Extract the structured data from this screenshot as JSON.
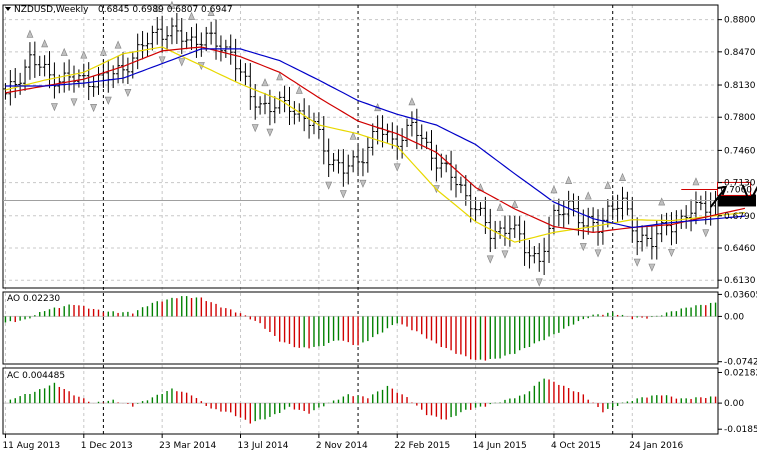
{
  "chart_data": [
    {
      "panel": "price",
      "type": "candlestick",
      "title": "NZDUSD,Weekly",
      "ohlc_header": "0.6845 0.6989 0.6807 0.6947",
      "last_price": "0.6947",
      "target_label": "0.7060",
      "ylim": [
        0.605,
        0.895
      ],
      "y_ticks": [
        "0.8800",
        "0.8470",
        "0.8130",
        "0.7800",
        "0.7460",
        "0.7130",
        "0.6790",
        "0.6460",
        "0.6130"
      ],
      "y_tick_values": [
        0.88,
        0.847,
        0.813,
        0.78,
        0.746,
        0.713,
        0.679,
        0.646,
        0.613
      ],
      "x_labels": [
        "11 Aug 2013",
        "1 Dec 2013",
        "23 Mar 2014",
        "13 Jul 2014",
        "2 Nov 2014",
        "22 Feb 2015",
        "14 Jun 2015",
        "4 Oct 2015",
        "24 Jan 2016"
      ],
      "series_ma": [
        {
          "color": "#e8d800",
          "anchors": [
            [
              0,
              0.808
            ],
            [
              8,
              0.818
            ],
            [
              16,
              0.826
            ],
            [
              24,
              0.845
            ],
            [
              32,
              0.852
            ],
            [
              40,
              0.833
            ],
            [
              48,
              0.814
            ],
            [
              56,
              0.798
            ],
            [
              64,
              0.772
            ],
            [
              72,
              0.763
            ],
            [
              80,
              0.75
            ],
            [
              88,
              0.706
            ],
            [
              96,
              0.673
            ],
            [
              104,
              0.652
            ],
            [
              112,
              0.662
            ],
            [
              120,
              0.668
            ],
            [
              128,
              0.675
            ],
            [
              136,
              0.674
            ],
            [
              145,
              0.679
            ]
          ]
        },
        {
          "color": "#d00000",
          "anchors": [
            [
              0,
              0.805
            ],
            [
              8,
              0.812
            ],
            [
              16,
              0.819
            ],
            [
              24,
              0.832
            ],
            [
              32,
              0.848
            ],
            [
              40,
              0.852
            ],
            [
              48,
              0.842
            ],
            [
              56,
              0.826
            ],
            [
              64,
              0.8
            ],
            [
              72,
              0.776
            ],
            [
              80,
              0.763
            ],
            [
              88,
              0.744
            ],
            [
              96,
              0.708
            ],
            [
              104,
              0.686
            ],
            [
              112,
              0.668
            ],
            [
              120,
              0.662
            ],
            [
              128,
              0.667
            ],
            [
              136,
              0.67
            ],
            [
              145,
              0.68
            ]
          ]
        },
        {
          "color": "#0000c8",
          "anchors": [
            [
              0,
              0.812
            ],
            [
              8,
              0.812
            ],
            [
              16,
              0.815
            ],
            [
              24,
              0.82
            ],
            [
              32,
              0.835
            ],
            [
              40,
              0.85
            ],
            [
              48,
              0.85
            ],
            [
              56,
              0.838
            ],
            [
              64,
              0.818
            ],
            [
              72,
              0.797
            ],
            [
              80,
              0.783
            ],
            [
              88,
              0.772
            ],
            [
              96,
              0.752
            ],
            [
              104,
              0.722
            ],
            [
              112,
              0.693
            ],
            [
              120,
              0.676
            ],
            [
              128,
              0.667
            ],
            [
              136,
              0.672
            ],
            [
              145,
              0.676
            ]
          ]
        }
      ],
      "closes_anchors": [
        [
          0,
          0.8
        ],
        [
          5,
          0.84
        ],
        [
          9,
          0.822
        ],
        [
          15,
          0.818
        ],
        [
          21,
          0.82
        ],
        [
          26,
          0.84
        ],
        [
          31,
          0.87
        ],
        [
          37,
          0.86
        ],
        [
          41,
          0.86
        ],
        [
          46,
          0.848
        ],
        [
          50,
          0.8
        ],
        [
          54,
          0.79
        ],
        [
          58,
          0.793
        ],
        [
          63,
          0.77
        ],
        [
          66,
          0.74
        ],
        [
          69,
          0.725
        ],
        [
          72,
          0.735
        ],
        [
          76,
          0.768
        ],
        [
          79,
          0.755
        ],
        [
          83,
          0.77
        ],
        [
          86,
          0.75
        ],
        [
          89,
          0.73
        ],
        [
          92,
          0.713
        ],
        [
          95,
          0.695
        ],
        [
          99,
          0.66
        ],
        [
          103,
          0.67
        ],
        [
          106,
          0.645
        ],
        [
          109,
          0.635
        ],
        [
          112,
          0.675
        ],
        [
          115,
          0.694
        ],
        [
          118,
          0.668
        ],
        [
          121,
          0.67
        ],
        [
          123,
          0.686
        ],
        [
          126,
          0.69
        ],
        [
          129,
          0.66
        ],
        [
          132,
          0.65
        ],
        [
          135,
          0.672
        ],
        [
          138,
          0.673
        ],
        [
          142,
          0.691
        ],
        [
          145,
          0.6947
        ]
      ],
      "annotations": [
        "up-arrow",
        "zigzag-projection-arrow"
      ]
    },
    {
      "panel": "oscillator",
      "type": "histogram",
      "title": "AO 0.02230",
      "ylim": [
        -0.078,
        0.04
      ],
      "y_ticks": [
        "0.03605",
        "0.00",
        "-0.07424"
      ],
      "y_tick_values": [
        0.03605,
        0.0,
        -0.07424
      ],
      "anchors": [
        [
          0,
          -0.01
        ],
        [
          4,
          -0.006
        ],
        [
          8,
          0.01
        ],
        [
          14,
          0.02
        ],
        [
          20,
          0.008
        ],
        [
          26,
          0.006
        ],
        [
          30,
          0.022
        ],
        [
          36,
          0.033
        ],
        [
          40,
          0.03
        ],
        [
          44,
          0.016
        ],
        [
          48,
          0.005
        ],
        [
          52,
          -0.012
        ],
        [
          56,
          -0.04
        ],
        [
          60,
          -0.052
        ],
        [
          64,
          -0.05
        ],
        [
          68,
          -0.038
        ],
        [
          72,
          -0.048
        ],
        [
          76,
          -0.03
        ],
        [
          80,
          -0.01
        ],
        [
          84,
          -0.025
        ],
        [
          88,
          -0.045
        ],
        [
          92,
          -0.06
        ],
        [
          96,
          -0.072
        ],
        [
          100,
          -0.07
        ],
        [
          104,
          -0.06
        ],
        [
          108,
          -0.045
        ],
        [
          112,
          -0.03
        ],
        [
          116,
          -0.012
        ],
        [
          120,
          0.002
        ],
        [
          124,
          0.006
        ],
        [
          128,
          -0.003
        ],
        [
          132,
          -0.002
        ],
        [
          136,
          0.008
        ],
        [
          140,
          0.016
        ],
        [
          145,
          0.0223
        ]
      ]
    },
    {
      "panel": "oscillator",
      "type": "histogram",
      "title": "AC 0.004485",
      "ylim": [
        -0.022,
        0.025
      ],
      "y_ticks": [
        "0.02182",
        "0.00",
        "-0.01858"
      ],
      "y_tick_values": [
        0.02182,
        0.0,
        -0.01858
      ],
      "anchors": [
        [
          0,
          0.0
        ],
        [
          2,
          0.004
        ],
        [
          6,
          0.008
        ],
        [
          10,
          0.014
        ],
        [
          14,
          0.006
        ],
        [
          18,
          0.0
        ],
        [
          22,
          0.002
        ],
        [
          26,
          -0.002
        ],
        [
          30,
          0.004
        ],
        [
          34,
          0.01
        ],
        [
          38,
          0.006
        ],
        [
          42,
          -0.004
        ],
        [
          46,
          -0.007
        ],
        [
          50,
          -0.014
        ],
        [
          54,
          -0.01
        ],
        [
          58,
          -0.003
        ],
        [
          62,
          -0.007
        ],
        [
          66,
          0.0
        ],
        [
          70,
          0.006
        ],
        [
          74,
          0.004
        ],
        [
          78,
          0.012
        ],
        [
          82,
          0.004
        ],
        [
          86,
          -0.008
        ],
        [
          90,
          -0.012
        ],
        [
          94,
          -0.005
        ],
        [
          98,
          -0.002
        ],
        [
          102,
          0.002
        ],
        [
          106,
          0.006
        ],
        [
          110,
          0.018
        ],
        [
          114,
          0.012
        ],
        [
          118,
          0.006
        ],
        [
          122,
          -0.006
        ],
        [
          126,
          0.0
        ],
        [
          130,
          0.004
        ],
        [
          134,
          0.006
        ],
        [
          138,
          0.003
        ],
        [
          142,
          0.004
        ],
        [
          145,
          0.0045
        ]
      ]
    }
  ]
}
